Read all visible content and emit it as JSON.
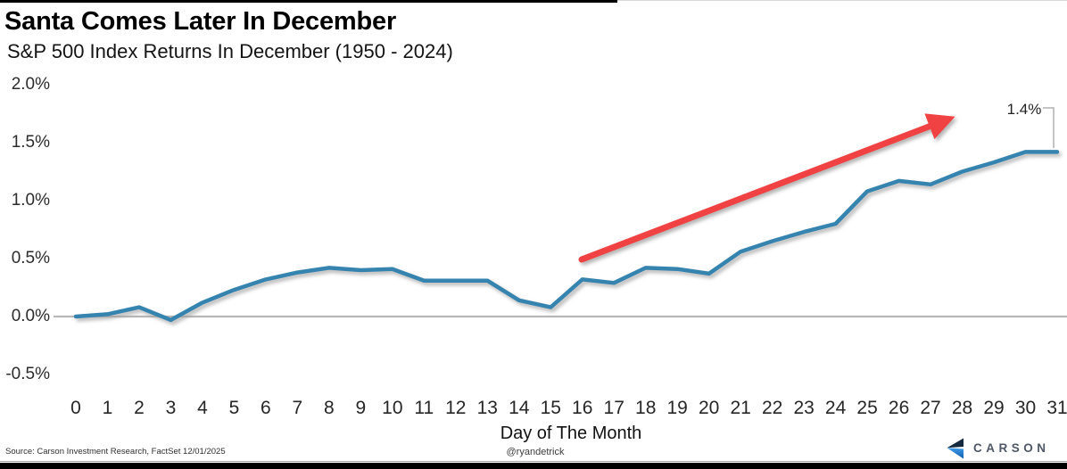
{
  "chart_data": {
    "type": "line",
    "title": "Santa Comes Later In December",
    "subtitle": "S&P 500 Index Returns In December (1950 - 2024)",
    "xlabel": "Day of The Month",
    "x": [
      0,
      1,
      2,
      3,
      4,
      5,
      6,
      7,
      8,
      9,
      10,
      11,
      12,
      13,
      14,
      15,
      16,
      17,
      18,
      19,
      20,
      21,
      22,
      23,
      24,
      25,
      26,
      27,
      28,
      29,
      30,
      31
    ],
    "values": [
      0.0,
      0.02,
      0.08,
      -0.03,
      0.12,
      0.23,
      0.32,
      0.38,
      0.42,
      0.4,
      0.41,
      0.31,
      0.31,
      0.31,
      0.14,
      0.08,
      0.32,
      0.29,
      0.42,
      0.41,
      0.37,
      0.56,
      0.65,
      0.73,
      0.8,
      1.08,
      1.17,
      1.14,
      1.25,
      1.33,
      1.42,
      1.42
    ],
    "y_ticks": [
      {
        "label": "2.0%",
        "value": 2.0
      },
      {
        "label": "1.5%",
        "value": 1.5
      },
      {
        "label": "1.0%",
        "value": 1.0
      },
      {
        "label": "0.5%",
        "value": 0.5
      },
      {
        "label": "0.0%",
        "value": 0.0
      },
      {
        "label": "-0.5%",
        "value": -0.5
      }
    ],
    "ylim": [
      -0.5,
      2.0
    ],
    "xlim": [
      0,
      31
    ],
    "grid": "zero_line_only",
    "legend": "none",
    "line_color": "#3484af",
    "zero_line_color": "#b7b7b7",
    "annotation": {
      "end_label": "1.4%",
      "type": "trend-arrow",
      "arrow_color": "#f04343",
      "callout_color": "#b0b0b0"
    }
  },
  "footer": {
    "source": "Source: Carson Investment Research, FactSet 12/01/2025",
    "handle": "@ryandetrick",
    "brand": "CARSON",
    "brand_navy": "#14293d",
    "brand_blue_top": "#3f9ceb",
    "brand_blue_bottom": "#0d5cab"
  }
}
